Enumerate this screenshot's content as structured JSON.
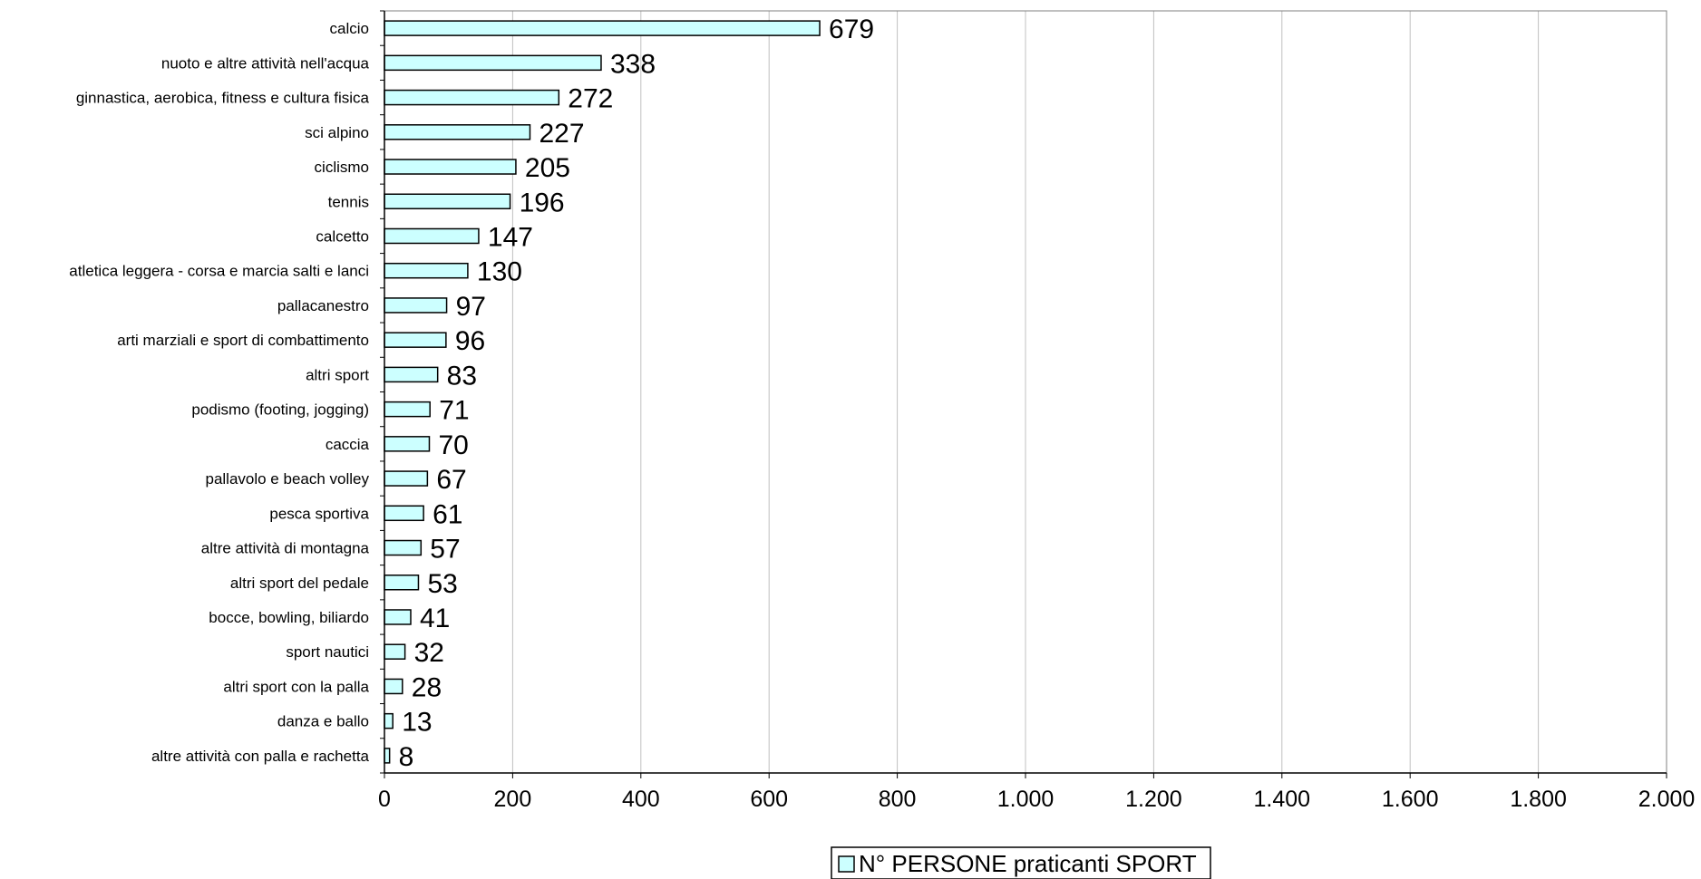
{
  "chart_data": {
    "type": "bar",
    "orientation": "horizontal",
    "categories": [
      "calcio",
      "nuoto e altre attività nell'acqua",
      "ginnastica, aerobica, fitness e cultura fisica",
      "sci alpino",
      "ciclismo",
      "tennis",
      "calcetto",
      "atletica leggera - corsa e marcia salti e lanci",
      "pallacanestro",
      "arti marziali e sport di combattimento",
      "altri sport",
      "podismo (footing, jogging)",
      "caccia",
      "pallavolo e beach volley",
      "pesca sportiva",
      "altre attività di montagna",
      "altri sport del pedale",
      "bocce, bowling, biliardo",
      "sport nautici",
      "altri sport con la palla",
      "danza e ballo",
      "altre attività con palla e rachetta"
    ],
    "series": [
      {
        "name": "N° PERSONE praticanti SPORT",
        "values": [
          679,
          338,
          272,
          227,
          205,
          196,
          147,
          130,
          97,
          96,
          83,
          71,
          70,
          67,
          61,
          57,
          53,
          41,
          32,
          28,
          13,
          8
        ],
        "value_labels": [
          "679",
          "338",
          "272",
          "227",
          "205",
          "196",
          "147",
          "130",
          "97",
          "96",
          "83",
          "71",
          "70",
          "67",
          "61",
          "57",
          "53",
          "41",
          "32",
          "28",
          "13",
          "8"
        ]
      }
    ],
    "xlim": [
      0,
      2000
    ],
    "x_ticks": [
      0,
      200,
      400,
      600,
      800,
      1000,
      1200,
      1400,
      1600,
      1800,
      2000
    ],
    "x_tick_labels": [
      "0",
      "200",
      "400",
      "600",
      "800",
      "1.000",
      "1.200",
      "1.400",
      "1.600",
      "1.800",
      "2.000"
    ],
    "grid": "vertical",
    "legend_position": "bottom",
    "title": "",
    "xlabel": "",
    "ylabel": "",
    "colors": {
      "bar_fill": "#ccffff",
      "bar_stroke": "#000000",
      "grid": "#c0c0c0",
      "axis": "#000000",
      "plot_border": "#808080"
    }
  }
}
